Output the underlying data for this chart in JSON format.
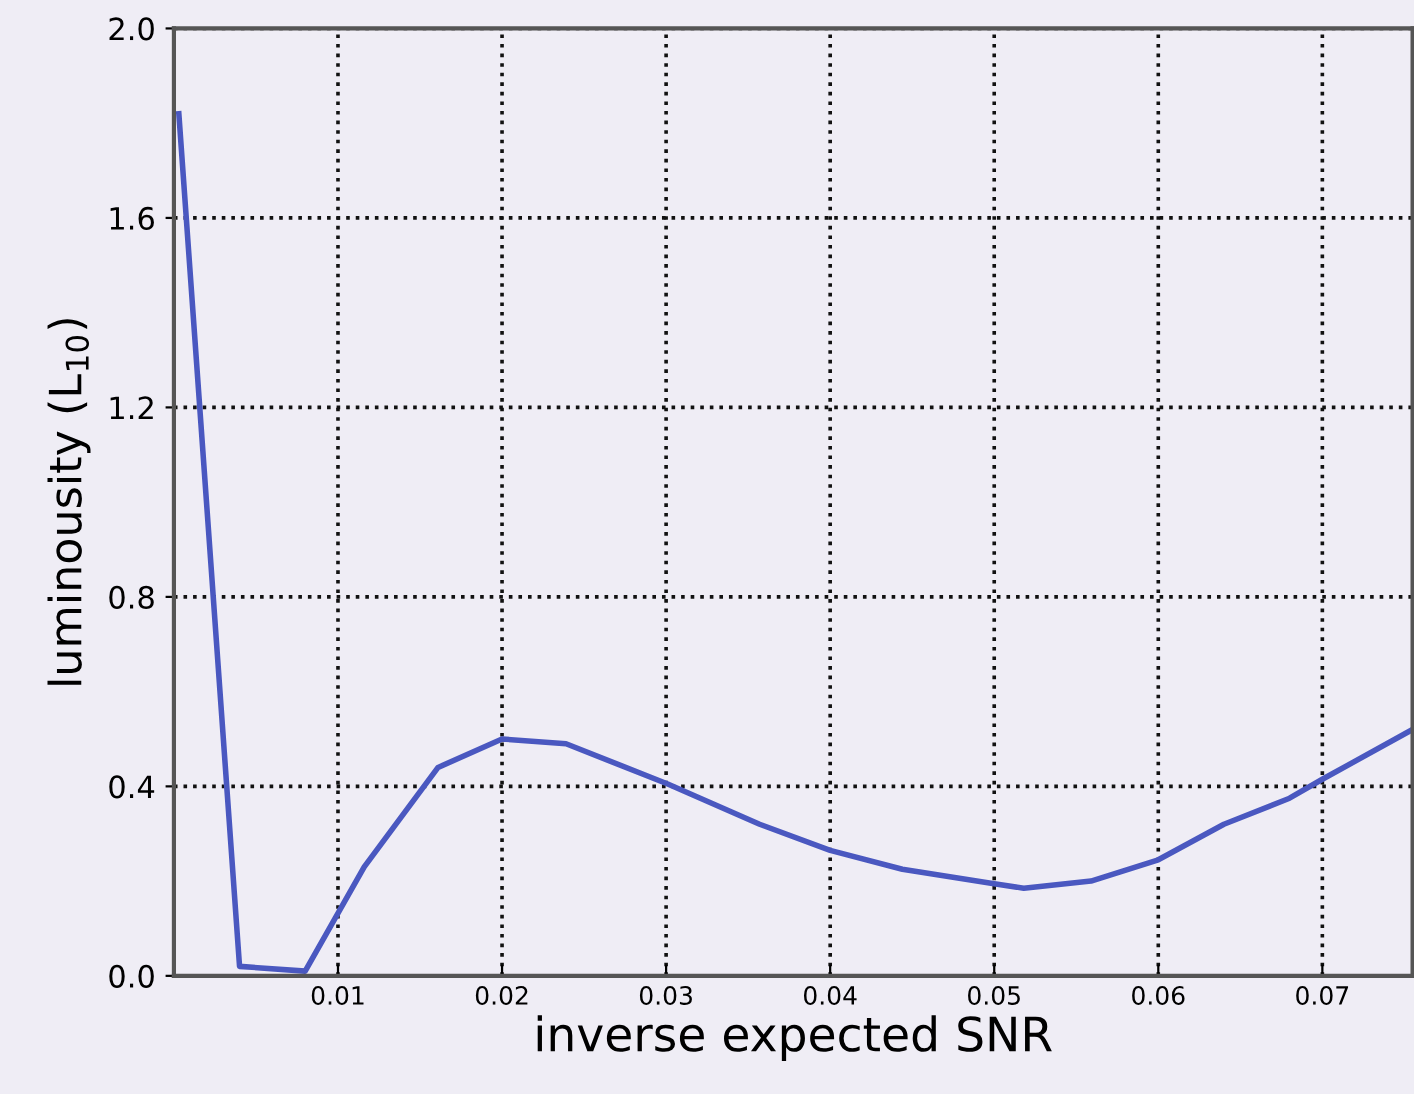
{
  "chart_data": {
    "type": "line",
    "xlabel": "inverse expected SNR",
    "ylabel": "luminousity (L$_{10}$)",
    "x": [
      0.0003,
      0.004,
      0.008,
      0.0116,
      0.0161,
      0.02,
      0.0239,
      0.0301,
      0.0357,
      0.04,
      0.0444,
      0.0499,
      0.0518,
      0.0559,
      0.06,
      0.064,
      0.068,
      0.07,
      0.0755
    ],
    "series": [
      {
        "color": "#4a58c0",
        "values": [
          1.82,
          0.02,
          0.01,
          0.23,
          0.44,
          0.5,
          0.49,
          0.405,
          0.32,
          0.265,
          0.225,
          0.195,
          0.185,
          0.2,
          0.245,
          0.32,
          0.375,
          0.415,
          0.52
        ]
      }
    ],
    "xlim": [
      0.0,
      0.0755
    ],
    "ylim": [
      0.0,
      2.0
    ],
    "xticks": [
      0.01,
      0.02,
      0.03,
      0.04,
      0.05,
      0.06,
      0.07
    ],
    "yticks": [
      {
        "value": 0,
        "label": "0.0"
      },
      0.4,
      0.8,
      1.2,
      1.6,
      {
        "value": 2,
        "label": "2.0"
      }
    ],
    "grid": true,
    "legend": false,
    "marker": "none",
    "line_style": "solid"
  }
}
